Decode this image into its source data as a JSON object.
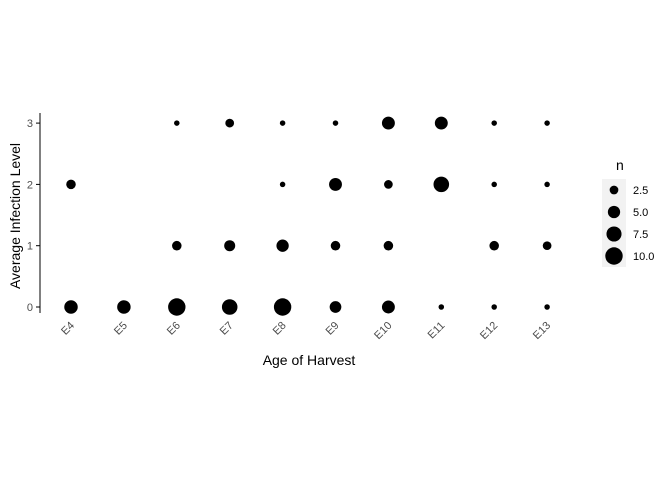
{
  "chart_data": {
    "type": "scatter",
    "xlabel": "Age of Harvest",
    "ylabel": "Average Infection Level",
    "categories": [
      "E4",
      "E5",
      "E6",
      "E7",
      "E8",
      "E9",
      "E10",
      "E11",
      "E12",
      "E13"
    ],
    "y_ticks": [
      0,
      1,
      2,
      3
    ],
    "ylim": [
      0,
      3
    ],
    "grid": false,
    "points": [
      {
        "x": "E4",
        "y": 0,
        "n": 6
      },
      {
        "x": "E4",
        "y": 2,
        "n": 3
      },
      {
        "x": "E5",
        "y": 0,
        "n": 6
      },
      {
        "x": "E6",
        "y": 0,
        "n": 10
      },
      {
        "x": "E6",
        "y": 1,
        "n": 3
      },
      {
        "x": "E6",
        "y": 3,
        "n": 1
      },
      {
        "x": "E7",
        "y": 0,
        "n": 8
      },
      {
        "x": "E7",
        "y": 1,
        "n": 4
      },
      {
        "x": "E7",
        "y": 3,
        "n": 2.5
      },
      {
        "x": "E8",
        "y": 0,
        "n": 10
      },
      {
        "x": "E8",
        "y": 1,
        "n": 5
      },
      {
        "x": "E8",
        "y": 2,
        "n": 1
      },
      {
        "x": "E8",
        "y": 3,
        "n": 1
      },
      {
        "x": "E9",
        "y": 0,
        "n": 4.5
      },
      {
        "x": "E9",
        "y": 1,
        "n": 3
      },
      {
        "x": "E9",
        "y": 2,
        "n": 5.5
      },
      {
        "x": "E9",
        "y": 3,
        "n": 1
      },
      {
        "x": "E10",
        "y": 0,
        "n": 5.5
      },
      {
        "x": "E10",
        "y": 1,
        "n": 3
      },
      {
        "x": "E10",
        "y": 2,
        "n": 2.5
      },
      {
        "x": "E10",
        "y": 3,
        "n": 5.5
      },
      {
        "x": "E11",
        "y": 0,
        "n": 1
      },
      {
        "x": "E11",
        "y": 2,
        "n": 8
      },
      {
        "x": "E11",
        "y": 3,
        "n": 5.5
      },
      {
        "x": "E12",
        "y": 0,
        "n": 1
      },
      {
        "x": "E12",
        "y": 1,
        "n": 3
      },
      {
        "x": "E12",
        "y": 2,
        "n": 1
      },
      {
        "x": "E12",
        "y": 3,
        "n": 1
      },
      {
        "x": "E13",
        "y": 0,
        "n": 1
      },
      {
        "x": "E13",
        "y": 1,
        "n": 2.5
      },
      {
        "x": "E13",
        "y": 2,
        "n": 1
      },
      {
        "x": "E13",
        "y": 3,
        "n": 1
      }
    ],
    "legend": {
      "title": "n",
      "placement": "right",
      "entries": [
        {
          "label": "2.5",
          "n": 2.5
        },
        {
          "label": "5.0",
          "n": 5.0
        },
        {
          "label": "7.5",
          "n": 7.5
        },
        {
          "label": "10.0",
          "n": 10.0
        }
      ]
    },
    "colors": {
      "points": "#000000",
      "axis": "#000000",
      "tick_text": "#4d4d4d",
      "legend_key_bg": "#f2f2f2"
    }
  }
}
